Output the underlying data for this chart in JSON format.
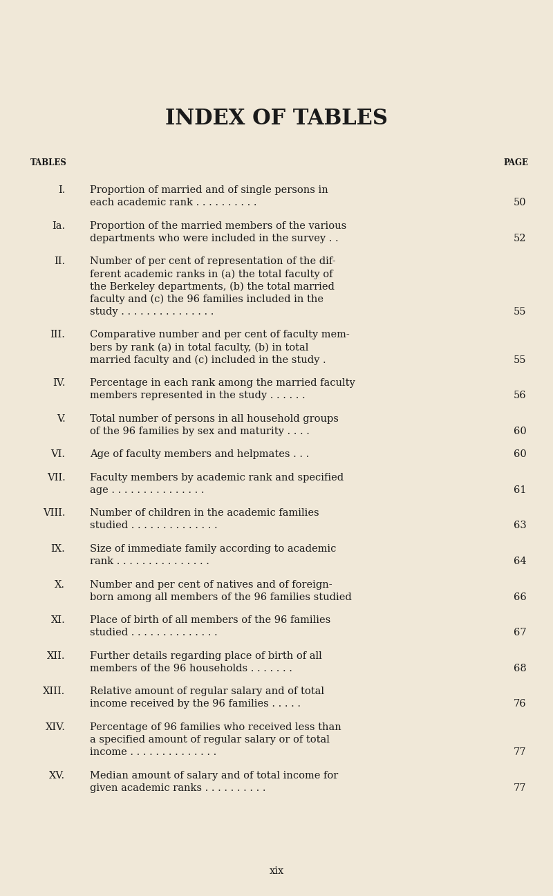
{
  "bg_color": "#f0e8d8",
  "title": "INDEX OF TABLES",
  "title_fontsize": 22,
  "header_left": "TABLES",
  "header_right": "PAGE",
  "header_fontsize": 8.5,
  "footer_text": "xix",
  "entries": [
    {
      "num": "I.",
      "text": "Proportion of married and of single persons in\neach academic rank . . . . . . . . . .",
      "page": "50"
    },
    {
      "num": "Ia.",
      "text": "Proportion of the married members of the various\ndepartments who were included in the survey . .",
      "page": "52"
    },
    {
      "num": "II.",
      "text": "Number of per cent of representation of the dif-\nferent academic ranks in (a) the total faculty of\nthe Berkeley departments, (b) the total married\nfaculty and (c) the 96 families included in the\nstudy . . . . . . . . . . . . . . .",
      "page": "55"
    },
    {
      "num": "III.",
      "text": "Comparative number and per cent of faculty mem-\nbers by rank (a) in total faculty, (b) in total\nmarried faculty and (c) included in the study .",
      "page": "55"
    },
    {
      "num": "IV.",
      "text": "Percentage in each rank among the married faculty\nmembers represented in the study . . . . . .",
      "page": "56"
    },
    {
      "num": "V.",
      "text": "Total number of persons in all household groups\nof the 96 families by sex and maturity . . . .",
      "page": "60"
    },
    {
      "num": "VI.",
      "text": "Age of faculty members and helpmates . . .",
      "page": "60"
    },
    {
      "num": "VII.",
      "text": "Faculty members by academic rank and specified\nage . . . . . . . . . . . . . . .",
      "page": "61"
    },
    {
      "num": "VIII.",
      "text": "Number of children in the academic families\nstudied . . . . . . . . . . . . . .",
      "page": "63"
    },
    {
      "num": "IX.",
      "text": "Size of immediate family according to academic\nrank . . . . . . . . . . . . . . .",
      "page": "64"
    },
    {
      "num": "X.",
      "text": "Number and per cent of natives and of foreign-\nborn among all members of the 96 families studied",
      "page": "66"
    },
    {
      "num": "XI.",
      "text": "Place of birth of all members of the 96 families\nstudied . . . . . . . . . . . . . .",
      "page": "67"
    },
    {
      "num": "XII.",
      "text": "Further details regarding place of birth of all\nmembers of the 96 households . . . . . . .",
      "page": "68"
    },
    {
      "num": "XIII.",
      "text": "Relative amount of regular salary and of total\nincome received by the 96 families . . . . .",
      "page": "76"
    },
    {
      "num": "XIV.",
      "text": "Percentage of 96 families who received less than\na specified amount of regular salary or of total\nincome . . . . . . . . . . . . . .",
      "page": "77"
    },
    {
      "num": "XV.",
      "text": "Median amount of salary and of total income for\ngiven academic ranks . . . . . . . . . .",
      "page": "77"
    }
  ]
}
